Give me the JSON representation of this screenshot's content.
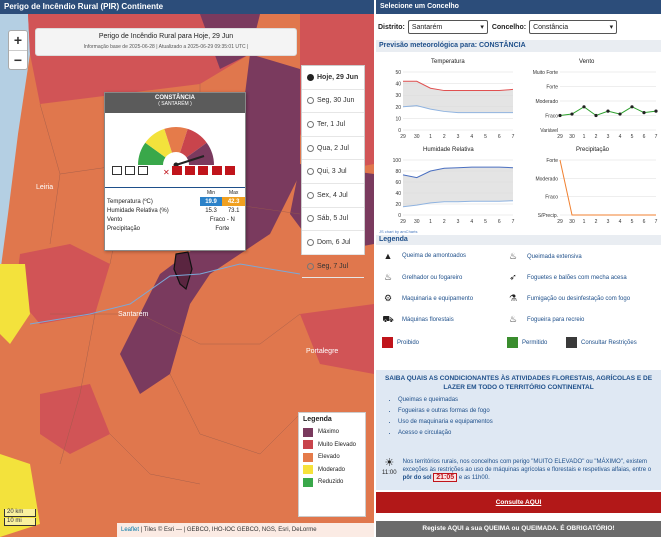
{
  "map": {
    "title": "Perigo de Incêndio Rural (PIR) Continente",
    "zoom_in": "+",
    "zoom_out": "−",
    "header_title": "Perigo de Incêndio Rural para Hoje, 29 Jun",
    "header_subtitle": "Informação base de 2025-06-28  |  Atualizado a 2025-06-29 09:35:01 UTC  |",
    "place_labels": [
      "Leiria",
      "Santarém",
      "Portalegre"
    ],
    "days": [
      {
        "label": "Hoje, 29 Jun",
        "selected": true
      },
      {
        "label": "Seg, 30 Jun",
        "selected": false
      },
      {
        "label": "Ter, 1 Jul",
        "selected": false
      },
      {
        "label": "Qua, 2 Jul",
        "selected": false
      },
      {
        "label": "Qui, 3 Jul",
        "selected": false
      },
      {
        "label": "Sex, 4 Jul",
        "selected": false
      },
      {
        "label": "Sáb, 5 Jul",
        "selected": false
      },
      {
        "label": "Dom, 6 Jul",
        "selected": false
      },
      {
        "label": "Seg, 7 Jul",
        "selected": false
      }
    ],
    "popup": {
      "name": "CONSTÂNCIA",
      "district": "( SANTARÉM )",
      "col_min": "Min",
      "col_max": "Max",
      "temp_label": "Temperatura (ºC)",
      "temp_min": "19.9",
      "temp_max": "42.3",
      "hum_label": "Humidade Relativa (%)",
      "hum_min": "15.3",
      "hum_max": "73.1",
      "wind_label": "Vento",
      "wind_value": "Fraco - N",
      "prec_label": "Precipitação",
      "prec_value": "Forte"
    },
    "scale_km": "20 km",
    "scale_mi": "10 mi",
    "legend": {
      "title": "Legenda",
      "items": [
        {
          "label": "Máximo",
          "color": "#7a3a5e"
        },
        {
          "label": "Muito Elevado",
          "color": "#c9444c"
        },
        {
          "label": "Elevado",
          "color": "#e57b4a"
        },
        {
          "label": "Moderado",
          "color": "#f6e23b"
        },
        {
          "label": "Reduzido",
          "color": "#39a84a"
        }
      ]
    },
    "attribution_leaflet": "Leaflet",
    "attribution_rest": " | Tiles © Esri — | GEBCO, IHO-IOC GEBCO, NGS, Esri, DeLorme"
  },
  "side": {
    "header": "Selecione um Concelho",
    "district_label": "Distrito:",
    "district_value": "Santarém",
    "county_label": "Concelho:",
    "county_value": "Constância",
    "forecast_title": "Previsão meteorológica para: CONSTÂNCIA",
    "chart_titles": [
      "Temperatura",
      "Vento",
      "Humidade Relativa",
      "Precipitação"
    ],
    "x_ticks": [
      "29",
      "30",
      "1",
      "2",
      "3",
      "4",
      "5",
      "6",
      "7"
    ],
    "credit": "JS chart by amCharts",
    "legend_title": "Legenda",
    "legend_items": [
      "Queima de amontoados",
      "Queimada extensiva",
      "Grelhador ou fogareiro",
      "Foguetes e balões com mecha acesa",
      "Maquinaria e equipamento",
      "Fumigação ou desinfestação com fogo",
      "Máquinas florestais",
      "Fogueira para recreio"
    ],
    "restrictions": [
      {
        "label": "Proibido",
        "color": "#c0141b"
      },
      {
        "label": "Permitido",
        "color": "#3a8d2e"
      },
      {
        "label": "Consultar Restrições",
        "color": "#3a3a3a"
      }
    ],
    "info_title": "SAIBA QUAIS AS CONDICIONANTES ÀS ATIVIDADES FLORESTAIS, AGRÍCOLAS E DE LAZER EM TODO O TERRITÓRIO CONTINENTAL",
    "info_list": [
      "Queimas e queimadas",
      "Fogueiras e outras formas de fogo",
      "Uso de maquinaria e equipamentos",
      "Acesso e circulação"
    ],
    "note_a": "Nos territórios rurais, nos concelhos com perigo \"MUITO ELEVADO\" ou \"MÁXIMO\", existem exceções às restrições ao uso de máquinas agrícolas e florestais e respetivas alfaias, entre o ",
    "note_sunset": "pôr do sol",
    "note_time": "21:05",
    "note_b": " e as 11h00.",
    "sun_hour": "11:00",
    "consult": "Consulte AQUI",
    "register": "Registe AQUI a sua QUEIMA ou QUEIMADA. É OBRIGATÓRIO!"
  },
  "chart_data": [
    {
      "type": "line",
      "title": "Temperatura",
      "x": [
        "29",
        "30",
        "1",
        "2",
        "3",
        "4",
        "5",
        "6",
        "7"
      ],
      "ylim": [
        0,
        50
      ],
      "yticks": [
        "0",
        "10",
        "20",
        "30",
        "40",
        "50"
      ],
      "series": [
        {
          "values": [
            42,
            42,
            36,
            34,
            34,
            34,
            34,
            34,
            35
          ],
          "color": "#e05050"
        },
        {
          "values": [
            20,
            21,
            18,
            16,
            15,
            15,
            15,
            15,
            15
          ],
          "color": "#8fb3e0"
        }
      ]
    },
    {
      "type": "line",
      "title": "Vento",
      "x": [
        "29",
        "30",
        "1",
        "2",
        "3",
        "4",
        "5",
        "6",
        "7"
      ],
      "yticks": [
        "Variável",
        "Fraco",
        "Moderado",
        "Forte",
        "Muito Forte"
      ],
      "series": [
        {
          "values": [
            1,
            1.1,
            1.6,
            1,
            1.3,
            1.1,
            1.6,
            1.2,
            1.3
          ],
          "color": "#2ca02c"
        }
      ]
    },
    {
      "type": "line",
      "title": "Humidade Relativa",
      "x": [
        "29",
        "30",
        "1",
        "2",
        "3",
        "4",
        "5",
        "6",
        "7"
      ],
      "ylim": [
        0,
        100
      ],
      "yticks": [
        "0",
        "20",
        "40",
        "60",
        "80",
        "100"
      ],
      "series": [
        {
          "values": [
            73,
            68,
            80,
            85,
            86,
            87,
            87,
            87,
            86
          ],
          "color": "#4a6fc0"
        },
        {
          "values": [
            15,
            18,
            22,
            24,
            24,
            25,
            25,
            25,
            26
          ],
          "color": "#8fb3e0"
        }
      ]
    },
    {
      "type": "line",
      "title": "Precipitação",
      "x": [
        "29",
        "30",
        "1",
        "2",
        "3",
        "4",
        "5",
        "6",
        "7"
      ],
      "yticks": [
        "S/Precip.",
        "Fraco",
        "Moderado",
        "Forte"
      ],
      "series": [
        {
          "values": [
            3,
            0,
            0,
            0,
            0,
            0,
            0,
            0,
            0
          ],
          "color": "#f08030"
        }
      ]
    }
  ]
}
